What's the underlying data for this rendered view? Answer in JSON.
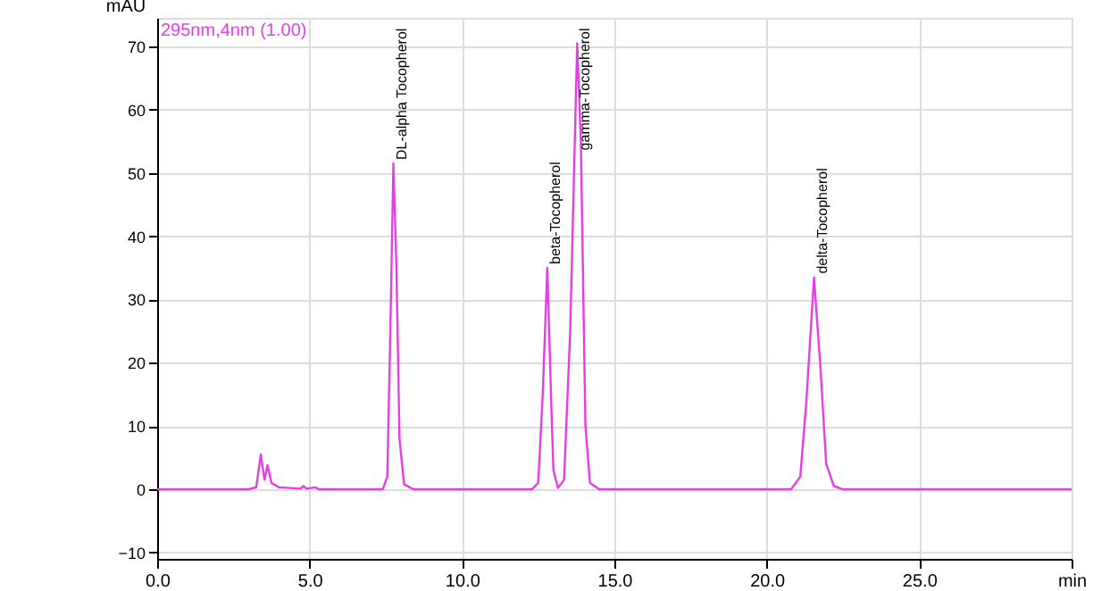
{
  "chart_data": {
    "type": "line",
    "ylabel": "mAU",
    "annotations": [
      "295nm,4nm (1.00)",
      {
        "text": "DL-alpha Tocopherol",
        "x": 7.75,
        "y": 51.5
      },
      {
        "text": "beta-Tocopherol",
        "x": 12.8,
        "y": 35
      },
      {
        "text": "gamma-Tocopherol",
        "x": 13.78,
        "y": 53
      },
      {
        "text": "delta-Tocopherol",
        "x": 21.55,
        "y": 33.5
      }
    ],
    "series": [
      {
        "color": "#e83ce8",
        "x": [
          0,
          3.0,
          3.25,
          3.4,
          3.52,
          3.62,
          3.75,
          4.0,
          4.7,
          4.8,
          4.9,
          5.2,
          5.3,
          7.4,
          7.55,
          7.65,
          7.75,
          7.85,
          7.95,
          8.1,
          8.4,
          12.3,
          12.5,
          12.65,
          12.8,
          12.92,
          13.0,
          13.15,
          13.35,
          13.55,
          13.78,
          13.9,
          14.05,
          14.2,
          14.5,
          20.8,
          21.1,
          21.3,
          21.55,
          21.75,
          21.95,
          22.2,
          22.5,
          30
        ],
        "values": [
          0,
          0,
          0.3,
          5.5,
          1.5,
          3.8,
          1,
          0.3,
          0.1,
          0.5,
          0.1,
          0.3,
          0,
          0,
          2,
          25,
          51.5,
          35,
          8,
          0.8,
          0,
          0,
          1,
          15,
          35,
          15,
          3,
          0.2,
          1.5,
          25,
          70.5,
          55,
          10,
          1,
          0,
          0,
          2,
          14,
          33.5,
          20,
          4,
          0.5,
          0,
          0
        ]
      }
    ],
    "xlim": [
      0,
      30
    ],
    "xticks": [
      {
        "value": 0,
        "label": "0.0"
      },
      {
        "value": 5,
        "label": "5.0"
      },
      {
        "value": 10,
        "label": "10.0"
      },
      {
        "value": 15,
        "label": "15.0"
      },
      {
        "value": 20,
        "label": "20.0"
      },
      {
        "value": 25,
        "label": "25.0"
      },
      {
        "value": 30,
        "label": "min"
      }
    ],
    "ylim": [
      -11,
      74.5
    ],
    "yticks": [
      -10,
      0,
      10,
      20,
      30,
      40,
      50,
      60,
      70
    ],
    "grid": true,
    "marker": "none",
    "line_style": "solid"
  }
}
